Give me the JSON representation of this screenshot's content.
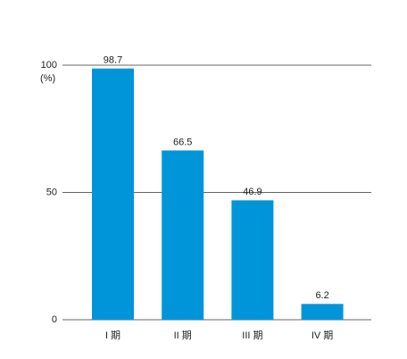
{
  "chart_data": {
    "type": "bar",
    "ylabel": "(%)",
    "categories": [
      "I 期",
      "II 期",
      "III 期",
      "IV 期"
    ],
    "values": [
      98.7,
      66.5,
      46.9,
      6.2
    ],
    "color": "#0095d9",
    "ylim": [
      0,
      100
    ],
    "yticks": [
      0,
      50,
      100
    ],
    "grid": true
  }
}
